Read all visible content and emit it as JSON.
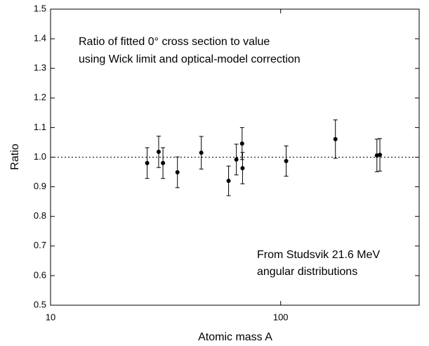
{
  "chart_data": {
    "type": "scatter",
    "xlabel": "Atomic mass A",
    "ylabel": "Ratio",
    "annotations": [
      "Ratio of fitted 0° cross section to value",
      "using Wick limit and optical-model correction",
      "From Studsvik 21.6 MeV",
      "angular distributions"
    ],
    "x": [
      26.3,
      29.5,
      30.8,
      35.6,
      45.2,
      59.4,
      64.2,
      68,
      68.3,
      105.7,
      173,
      262,
      270
    ],
    "values": [
      0.98,
      1.018,
      0.98,
      0.949,
      1.015,
      0.92,
      0.992,
      1.046,
      0.963,
      0.987,
      1.061,
      1.006,
      1.008
    ],
    "errors": [
      0.052,
      0.053,
      0.052,
      0.052,
      0.055,
      0.05,
      0.052,
      0.054,
      0.053,
      0.051,
      0.065,
      0.055,
      0.055
    ],
    "color": "#000000",
    "xscale": "log",
    "xlim": [
      10,
      400
    ],
    "xticks": [
      10,
      100
    ],
    "ylim": [
      0.5,
      1.5
    ],
    "yticks": [
      0.5,
      0.6,
      0.7,
      0.8,
      0.9,
      {
        "value": 1.0,
        "label": "1.0"
      },
      1.1,
      1.2,
      1.3,
      1.4,
      1.5
    ],
    "reference_line": 1.0
  }
}
